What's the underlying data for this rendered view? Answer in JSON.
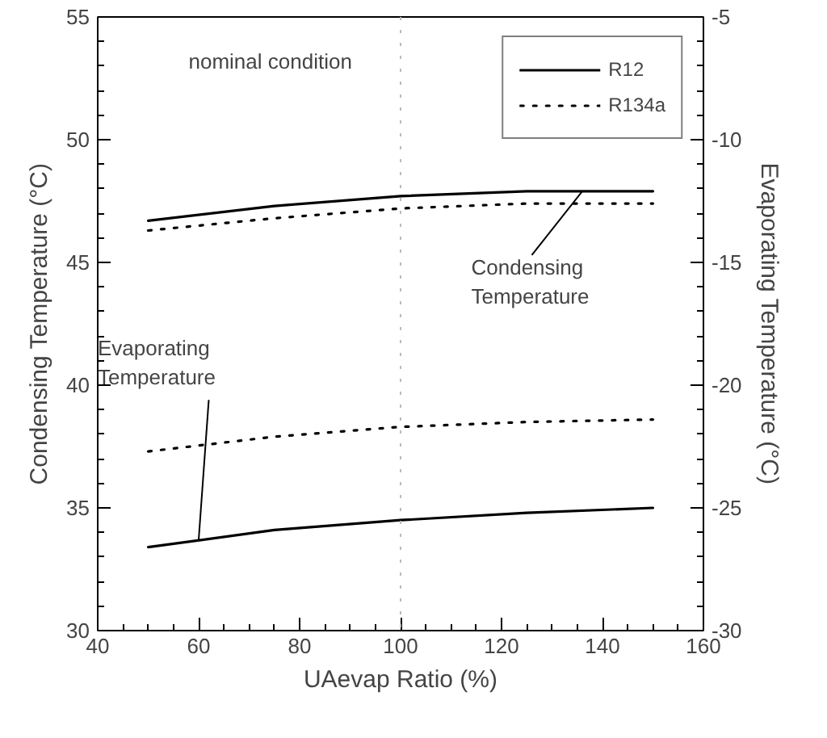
{
  "chart_data": {
    "type": "line",
    "xlabel": "UAevap Ratio (%)",
    "ylabel": "Condensing Temperature (°C)",
    "y2label": "Evaporating Temperature (°C)",
    "xlim": [
      40,
      160
    ],
    "xticks": [
      40,
      60,
      80,
      100,
      120,
      140,
      160
    ],
    "ylim": [
      30,
      55
    ],
    "yticks": [
      30,
      35,
      40,
      45,
      50,
      55
    ],
    "y2lim": [
      -30,
      -5
    ],
    "y2ticks": [
      -30,
      -25,
      -20,
      -15,
      -10,
      -5
    ],
    "x": [
      50,
      75,
      100,
      125,
      150
    ],
    "series": [
      {
        "name": "R12",
        "color": "#000000",
        "line_style": "solid",
        "values": [
          46.7,
          47.3,
          47.7,
          47.9,
          47.9
        ]
      },
      {
        "name": "R134a",
        "color": "#000000",
        "line_style": "dotted",
        "values": [
          46.3,
          46.8,
          47.2,
          47.4,
          47.4
        ]
      },
      {
        "color": "#000000",
        "line_style": "solid",
        "axis": "y2",
        "values": [
          -26.6,
          -25.9,
          -25.5,
          -25.2,
          -25.0
        ]
      },
      {
        "color": "#000000",
        "line_style": "dotted",
        "axis": "y2",
        "values": [
          -22.7,
          -22.1,
          -21.7,
          -21.5,
          -21.4
        ]
      }
    ],
    "ref_lines": [
      {
        "axis": "x",
        "value": 100,
        "color": "#bbbbbb",
        "line_style": "dotted"
      }
    ],
    "annotations": [
      "nominal condition",
      {
        "text": "Condensing\nTemperature",
        "x": 136,
        "y": 47.9
      },
      {
        "text": "Evaporating\nTemperature",
        "x": 60,
        "y": 33.7
      }
    ],
    "legend": "top right",
    "grid": false
  }
}
